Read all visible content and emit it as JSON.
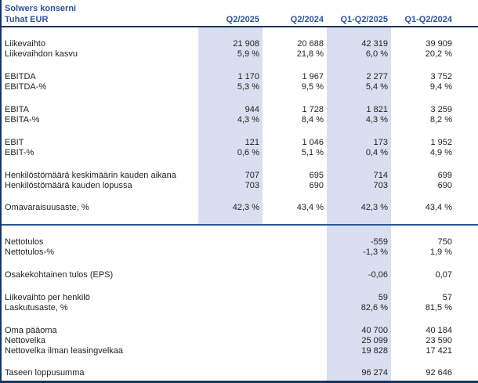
{
  "title": "Solwers konserni",
  "unit_label": "Tuhat EUR",
  "columns": [
    "Q2/2025",
    "Q2/2024",
    "Q1-Q2/2025",
    "Q1-Q2/2024"
  ],
  "highlighted_columns": [
    "Q2/2025",
    "Q1-Q2/2025"
  ],
  "colors": {
    "background": "#FFFFFF",
    "header_text": "#2E5395",
    "body_text": "#222222",
    "highlight_band": "#D9DFF0",
    "header_underline": "#17375E",
    "section_divider": "#2F5496",
    "outer_border": "#17375E"
  },
  "sections": [
    {
      "name": "profit-and-personnel-metrics",
      "rows": [
        {
          "label": "Liikevaihto",
          "values": [
            "21 908",
            "20 688",
            "42 319",
            "39 909"
          ]
        },
        {
          "label": "Liikevaihdon kasvu",
          "values": [
            "5,9 %",
            "21,8 %",
            "6,0 %",
            "20,2 %"
          ]
        },
        {
          "gap": 16
        },
        {
          "label": "EBITDA",
          "values": [
            "1 170",
            "1 967",
            "2 277",
            "3 752"
          ]
        },
        {
          "label": "EBITDA-%",
          "values": [
            "5,3 %",
            "9,5 %",
            "5,4 %",
            "9,4 %"
          ]
        },
        {
          "gap": 16
        },
        {
          "label": "EBITA",
          "values": [
            "944",
            "1 728",
            "1 821",
            "3 259"
          ]
        },
        {
          "label": "EBITA-%",
          "values": [
            "4,3 %",
            "8,4 %",
            "4,3 %",
            "8,2 %"
          ]
        },
        {
          "gap": 16
        },
        {
          "label": "EBIT",
          "values": [
            "121",
            "1 046",
            "173",
            "1 952"
          ]
        },
        {
          "label": "EBIT-%",
          "values": [
            "0,6 %",
            "5,1 %",
            "0,4 %",
            "4,9 %"
          ]
        },
        {
          "gap": 16
        },
        {
          "label": "Henkilöstömäärä keskimäärin kauden aikana",
          "values": [
            "707",
            "695",
            "714",
            "699"
          ]
        },
        {
          "label": "Henkilöstömäärä kauden lopussa",
          "values": [
            "703",
            "690",
            "703",
            "690"
          ]
        },
        {
          "gap": 15
        },
        {
          "label": "Omavaraisuusaste, %",
          "values": [
            "42,3 %",
            "43,4 %",
            "42,3 %",
            "43,4 %"
          ]
        }
      ]
    },
    {
      "name": "result-balance-and-per-share-metrics",
      "rows": [
        {
          "gap": 31
        },
        {
          "label": "Nettotulos",
          "values": [
            "",
            "",
            "-559",
            "750"
          ]
        },
        {
          "label": "Nettotulos-%",
          "values": [
            "",
            "",
            "-1,3 %",
            "1,9 %"
          ]
        },
        {
          "gap": 16
        },
        {
          "label": "Osakekohtainen tulos (EPS)",
          "values": [
            "",
            "",
            "-0,06",
            "0,07"
          ]
        },
        {
          "gap": 16
        },
        {
          "label": "Liikevaihto per henkilö",
          "values": [
            "",
            "",
            "59",
            "57"
          ]
        },
        {
          "label": "Laskutusaste, %",
          "values": [
            "",
            "",
            "82,6 %",
            "81,5 %"
          ]
        },
        {
          "gap": 16
        },
        {
          "label": "Oma pääoma",
          "values": [
            "",
            "",
            "40 700",
            "40 184"
          ]
        },
        {
          "label": "Nettovelka",
          "values": [
            "",
            "",
            "25 099",
            "23 590"
          ]
        },
        {
          "label": "Nettovelka ilman leasingvelkaa",
          "values": [
            "",
            "",
            "19 828",
            "17 421"
          ]
        },
        {
          "gap": 15
        },
        {
          "label": "Taseen loppusumma",
          "values": [
            "",
            "",
            "96 274",
            "92 646"
          ]
        }
      ]
    }
  ]
}
